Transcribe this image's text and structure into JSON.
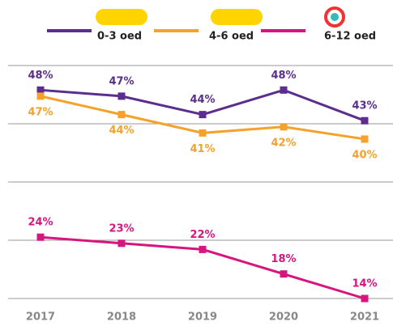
{
  "chart_data": {
    "type": "line",
    "categories": [
      "2017",
      "2018",
      "2019",
      "2020",
      "2021"
    ],
    "series": [
      {
        "name": "0-3 oed",
        "color": "#5b2d8e",
        "values": [
          48,
          47,
          44,
          48,
          43
        ],
        "value_labels": [
          "48%",
          "47%",
          "44%",
          "48%",
          "43%"
        ]
      },
      {
        "name": "4-6 oed",
        "color": "#f5a12b",
        "values": [
          47,
          44,
          41,
          42,
          40
        ],
        "value_labels": [
          "47%",
          "44%",
          "41%",
          "42%",
          "40%"
        ]
      },
      {
        "name": "6-12 oed",
        "color": "#d6157f",
        "values": [
          24,
          23,
          22,
          18,
          14
        ],
        "value_labels": [
          "24%",
          "23%",
          "22%",
          "18%",
          "14%"
        ]
      }
    ],
    "ylim": [
      14,
      52
    ],
    "yticks": [
      14,
      23.5,
      33,
      42.5,
      52
    ],
    "grid": true
  }
}
